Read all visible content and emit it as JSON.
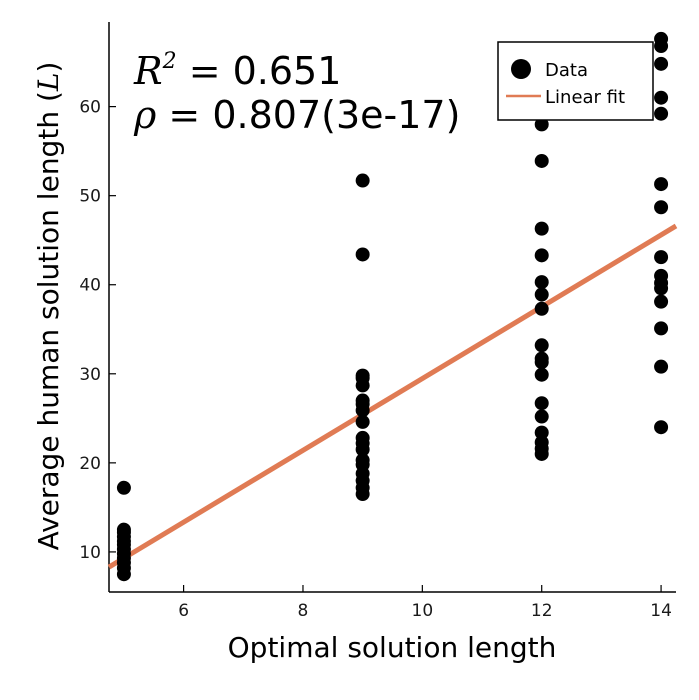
{
  "chart_data": {
    "type": "scatter",
    "xlabel": "Optimal solution length",
    "ylabel_text": "Average human solution length (",
    "ylabel_symbol": "L",
    "ylabel_close": ")",
    "xlim": [
      4.75,
      14.25
    ],
    "ylim": [
      5.5,
      69.5
    ],
    "xticks": [
      6,
      8,
      10,
      12,
      14
    ],
    "yticks": [
      10,
      20,
      30,
      40,
      50,
      60
    ],
    "grid": false,
    "legend_position": "top-right",
    "annotation": {
      "r2_symbol": "R",
      "r2_exponent": "2",
      "r2_equals": " = ",
      "r2_value": "0.651",
      "rho_symbol": "ρ",
      "rho_equals": " = ",
      "rho_value": "0.807(3e-17)"
    },
    "series": [
      {
        "name": "Data",
        "kind": "scatter",
        "color": "#000000",
        "points": [
          [
            5,
            7.5
          ],
          [
            5,
            8.2
          ],
          [
            5,
            8.8
          ],
          [
            5,
            9.3
          ],
          [
            5,
            9.8
          ],
          [
            5,
            10.3
          ],
          [
            5,
            10.8
          ],
          [
            5,
            11.2
          ],
          [
            5,
            11.7
          ],
          [
            5,
            12.2
          ],
          [
            5,
            12.5
          ],
          [
            5,
            17.2
          ],
          [
            9,
            16.5
          ],
          [
            9,
            17.2
          ],
          [
            9,
            18.0
          ],
          [
            9,
            18.8
          ],
          [
            9,
            19.8
          ],
          [
            9,
            20.3
          ],
          [
            9,
            21.5
          ],
          [
            9,
            22.2
          ],
          [
            9,
            22.8
          ],
          [
            9,
            24.6
          ],
          [
            9,
            25.9
          ],
          [
            9,
            26.6
          ],
          [
            9,
            27.0
          ],
          [
            9,
            28.7
          ],
          [
            9,
            29.5
          ],
          [
            9,
            29.8
          ],
          [
            9,
            43.4
          ],
          [
            9,
            51.7
          ],
          [
            12,
            21.0
          ],
          [
            12,
            21.6
          ],
          [
            12,
            22.3
          ],
          [
            12,
            23.4
          ],
          [
            12,
            25.2
          ],
          [
            12,
            26.7
          ],
          [
            12,
            29.9
          ],
          [
            12,
            31.3
          ],
          [
            12,
            31.7
          ],
          [
            12,
            33.2
          ],
          [
            12,
            37.3
          ],
          [
            12,
            38.9
          ],
          [
            12,
            40.3
          ],
          [
            12,
            43.3
          ],
          [
            12,
            46.3
          ],
          [
            12,
            53.9
          ],
          [
            12,
            58.0
          ],
          [
            14,
            24.0
          ],
          [
            14,
            30.8
          ],
          [
            14,
            35.1
          ],
          [
            14,
            38.1
          ],
          [
            14,
            39.6
          ],
          [
            14,
            40.2
          ],
          [
            14,
            41.0
          ],
          [
            14,
            43.1
          ],
          [
            14,
            48.7
          ],
          [
            14,
            51.3
          ],
          [
            14,
            59.2
          ],
          [
            14,
            61.0
          ],
          [
            14,
            64.8
          ],
          [
            14,
            66.8
          ],
          [
            14,
            67.6
          ]
        ]
      },
      {
        "name": "Linear fit",
        "kind": "line",
        "color": "#e07b54",
        "x": [
          4.75,
          14.25
        ],
        "y": [
          8.3,
          46.6
        ]
      }
    ]
  }
}
